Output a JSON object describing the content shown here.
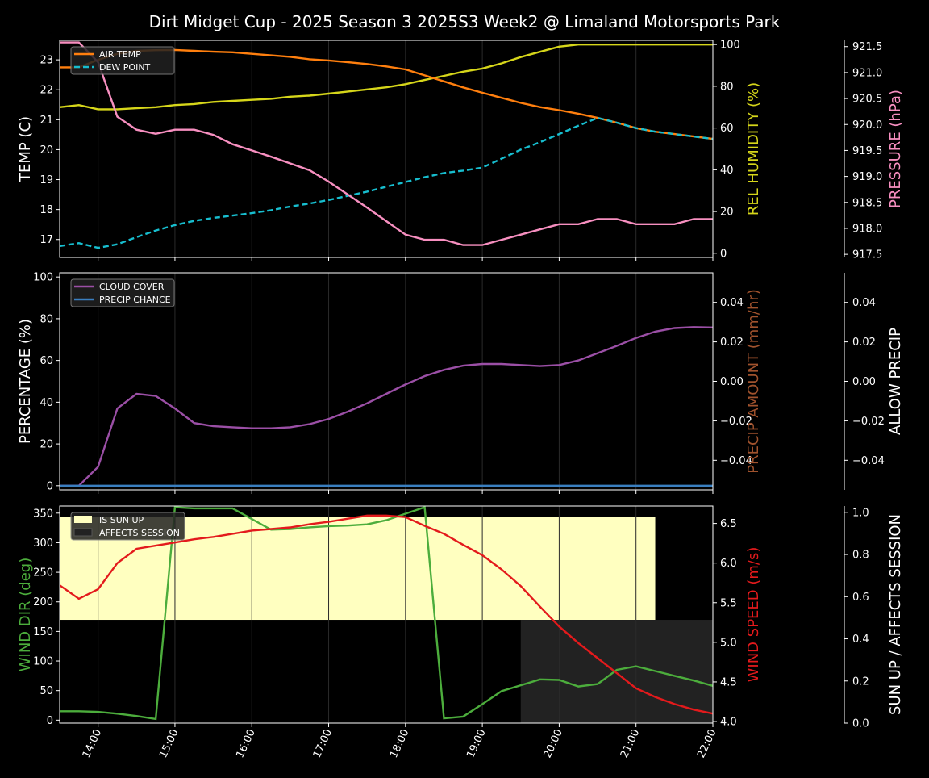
{
  "title": "Dirt Midget Cup - 2025 Season 3 2025S3 Week2 @ Limaland Motorsports Park",
  "colors": {
    "air_temp": "#ff7f0e",
    "dew_point": "#17becf",
    "humidity": "#d6d61a",
    "pressure": "#f78fc0",
    "cloud": "#9b4fa6",
    "precip_chance": "#3a7fc0",
    "precip_amount": "#a0522d",
    "wind_dir": "#4cad3c",
    "wind_speed": "#e31a1c",
    "sun_up": "#ffffc0",
    "affects": "#222222"
  },
  "x_ticks": [
    "14:00",
    "15:00",
    "16:00",
    "17:00",
    "18:00",
    "19:00",
    "20:00",
    "21:00",
    "22:00"
  ],
  "x_range_hours": [
    13.5,
    22.0
  ],
  "chart_data": [
    {
      "type": "line",
      "ylabel": "TEMP (C)",
      "ylabel2": "REL HUMIDITY (%)",
      "ylabel3": "PRESSURE (hPa)",
      "ylim": [
        16.4,
        23.65
      ],
      "ylim2": [
        -2,
        102
      ],
      "ylim3": [
        917.44,
        921.62
      ],
      "yticks": [
        "17",
        "18",
        "19",
        "20",
        "21",
        "22",
        "23"
      ],
      "yticks2": [
        "0",
        "20",
        "40",
        "60",
        "80",
        "100"
      ],
      "yticks3": [
        "917.5",
        "918.0",
        "918.5",
        "919.0",
        "919.5",
        "920.0",
        "920.5",
        "921.0",
        "921.5"
      ],
      "legend": [
        "AIR TEMP",
        "DEW POINT"
      ],
      "series": [
        {
          "name": "AIR TEMP",
          "axis": "left",
          "x": [
            13.5,
            13.75,
            14,
            14.25,
            14.5,
            14.75,
            15,
            15.25,
            15.5,
            15.75,
            16,
            16.25,
            16.5,
            16.75,
            17,
            17.25,
            17.5,
            17.75,
            18,
            18.25,
            18.5,
            18.75,
            19,
            19.25,
            19.5,
            19.75,
            20,
            20.25,
            20.5,
            20.75,
            21,
            21.25,
            21.5,
            21.75,
            22
          ],
          "values": [
            22.75,
            22.75,
            23.0,
            23.2,
            23.3,
            23.32,
            23.33,
            23.3,
            23.27,
            23.25,
            23.2,
            23.15,
            23.1,
            23.02,
            22.98,
            22.92,
            22.86,
            22.78,
            22.68,
            22.48,
            22.28,
            22.08,
            21.9,
            21.73,
            21.56,
            21.42,
            21.32,
            21.2,
            21.06,
            20.9,
            20.72,
            20.6,
            20.52,
            20.44,
            20.36
          ]
        },
        {
          "name": "DEW POINT",
          "axis": "left",
          "x": [
            13.5,
            13.75,
            14,
            14.25,
            14.5,
            14.75,
            15,
            15.25,
            15.5,
            15.75,
            16,
            16.25,
            16.5,
            16.75,
            17,
            17.25,
            17.5,
            17.75,
            18,
            18.25,
            18.5,
            18.75,
            19,
            19.25,
            19.5,
            19.75,
            20,
            20.25,
            20.5,
            20.75,
            21,
            21.25,
            21.5,
            21.75,
            22
          ],
          "values": [
            16.78,
            16.88,
            16.72,
            16.84,
            17.08,
            17.3,
            17.48,
            17.62,
            17.72,
            17.8,
            17.88,
            17.98,
            18.1,
            18.2,
            18.32,
            18.46,
            18.6,
            18.76,
            18.92,
            19.08,
            19.22,
            19.3,
            19.4,
            19.7,
            20.0,
            20.25,
            20.52,
            20.8,
            21.06,
            20.9,
            20.72,
            20.6,
            20.52,
            20.44,
            20.36
          ]
        },
        {
          "name": "REL HUMIDITY",
          "axis": "right",
          "x": [
            13.5,
            13.75,
            14,
            14.25,
            14.5,
            14.75,
            15,
            15.25,
            15.5,
            15.75,
            16,
            16.25,
            16.5,
            16.75,
            17,
            17.25,
            17.5,
            17.75,
            18,
            18.25,
            18.5,
            18.75,
            19,
            19.25,
            19.5,
            19.75,
            20,
            20.25,
            20.5,
            20.75,
            21,
            21.25,
            21.5,
            21.75,
            22
          ],
          "values": [
            70,
            71,
            69,
            69,
            69.5,
            70,
            71,
            71.5,
            72.5,
            73,
            73.5,
            74,
            75,
            75.5,
            76.5,
            77.5,
            78.5,
            79.5,
            81,
            83,
            85,
            87,
            88.5,
            91,
            94,
            96.5,
            99,
            100,
            100,
            100,
            100,
            100,
            100,
            100,
            100
          ]
        },
        {
          "name": "PRESSURE",
          "axis": "third",
          "x": [
            13.5,
            13.75,
            14,
            14.25,
            14.5,
            14.75,
            15,
            15.25,
            15.5,
            15.75,
            16,
            16.25,
            16.5,
            16.75,
            17,
            17.25,
            17.5,
            17.75,
            18,
            18.25,
            18.5,
            18.75,
            19,
            19.25,
            19.5,
            19.75,
            20,
            20.25,
            20.5,
            20.75,
            21,
            21.25,
            21.5,
            21.75,
            22
          ],
          "values": [
            921.58,
            921.58,
            921.2,
            920.15,
            919.9,
            919.82,
            919.9,
            919.9,
            919.8,
            919.62,
            919.5,
            919.38,
            919.25,
            919.12,
            918.9,
            918.65,
            918.4,
            918.14,
            917.88,
            917.78,
            917.78,
            917.68,
            917.68,
            917.78,
            917.88,
            917.98,
            918.08,
            918.08,
            918.18,
            918.18,
            918.08,
            918.08,
            918.08,
            918.18,
            918.18
          ]
        }
      ]
    },
    {
      "type": "line",
      "ylabel": "PERCENTAGE (%)",
      "ylabel2": "PRECIP AMOUNT (mm/hr)",
      "ylabel3": "ALLOW PRECIP",
      "ylim": [
        -2,
        102
      ],
      "ylim2": [
        -0.055,
        0.055
      ],
      "ylim3": [
        -0.055,
        0.055
      ],
      "yticks": [
        "0",
        "20",
        "40",
        "60",
        "80",
        "100"
      ],
      "yticks2": [
        "−0.04",
        "−0.02",
        "0.00",
        "0.02",
        "0.04"
      ],
      "yticks3": [
        "−0.04",
        "−0.02",
        "0.00",
        "0.02",
        "0.04"
      ],
      "legend": [
        "CLOUD COVER",
        "PRECIP CHANCE"
      ],
      "series": [
        {
          "name": "CLOUD COVER",
          "x": [
            13.5,
            13.75,
            14,
            14.25,
            14.5,
            14.75,
            15,
            15.25,
            15.5,
            15.75,
            16,
            16.25,
            16.5,
            16.75,
            17,
            17.25,
            17.5,
            17.75,
            18,
            18.25,
            18.5,
            18.75,
            19,
            19.25,
            19.5,
            19.75,
            20,
            20.25,
            20.5,
            20.75,
            21,
            21.25,
            21.5,
            21.75,
            22
          ],
          "values": [
            0,
            0,
            9,
            37,
            44,
            43,
            37,
            30,
            28.5,
            28,
            27.5,
            27.5,
            28,
            29.5,
            32,
            35.5,
            39.5,
            44,
            48.5,
            52.5,
            55.5,
            57.5,
            58.3,
            58.3,
            57.8,
            57.3,
            57.8,
            60,
            63.5,
            67,
            70.8,
            73.8,
            75.5,
            76,
            75.8
          ]
        },
        {
          "name": "PRECIP CHANCE",
          "x": [
            13.5,
            22
          ],
          "values": [
            0,
            0
          ]
        }
      ]
    },
    {
      "type": "line",
      "ylabel": "WIND DIR (deg)",
      "ylabel2": "WIND SPEED (m/s)",
      "ylabel3": "SUN UP / AFFECTS SESSION",
      "ylim": [
        -5,
        362
      ],
      "ylim2": [
        3.98,
        6.72
      ],
      "ylim3": [
        0,
        1.03
      ],
      "yticks": [
        "0",
        "50",
        "100",
        "150",
        "200",
        "250",
        "300",
        "350"
      ],
      "yticks2": [
        "4.0",
        "4.5",
        "5.0",
        "5.5",
        "6.0",
        "6.5"
      ],
      "yticks3": [
        "0.0",
        "0.2",
        "0.4",
        "0.6",
        "0.8",
        "1.0"
      ],
      "legend": [
        "IS SUN UP",
        "AFFECTS SESSION"
      ],
      "sun_up": {
        "x": [
          13.5,
          21.25
        ],
        "y": [
          0.49,
          0.98
        ]
      },
      "affects_session": {
        "x": [
          19.5,
          22.0
        ],
        "y": [
          0,
          0.49
        ]
      },
      "series": [
        {
          "name": "WIND DIR",
          "x": [
            13.5,
            13.75,
            14,
            14.25,
            14.5,
            14.75,
            15,
            15.25,
            15.5,
            15.75,
            16,
            16.25,
            16.5,
            16.75,
            17,
            17.25,
            17.5,
            17.75,
            18,
            18.25,
            18.5,
            18.75,
            19,
            19.25,
            19.5,
            19.75,
            20,
            20.25,
            20.5,
            20.75,
            21,
            21.25,
            21.5,
            21.75,
            22
          ],
          "values": [
            15,
            15,
            14,
            11,
            7,
            2,
            360,
            358,
            358,
            358,
            340,
            322,
            323,
            326,
            328,
            329,
            331,
            338,
            349,
            360,
            3,
            6,
            27,
            49,
            59,
            69,
            68,
            57,
            61,
            85,
            91,
            83,
            75,
            67,
            58
          ]
        },
        {
          "name": "WIND SPEED",
          "x": [
            13.5,
            13.75,
            14,
            14.25,
            14.5,
            14.75,
            15,
            15.25,
            15.5,
            15.75,
            16,
            16.25,
            16.5,
            16.75,
            17,
            17.25,
            17.5,
            17.75,
            18,
            18.25,
            18.5,
            18.75,
            19,
            19.25,
            19.5,
            19.75,
            20,
            20.25,
            20.5,
            20.75,
            21,
            21.25,
            21.5,
            21.75,
            22
          ],
          "values": [
            5.72,
            5.55,
            5.67,
            6.0,
            6.18,
            6.22,
            6.26,
            6.3,
            6.33,
            6.37,
            6.41,
            6.43,
            6.45,
            6.49,
            6.52,
            6.56,
            6.6,
            6.6,
            6.58,
            6.47,
            6.37,
            6.23,
            6.1,
            5.92,
            5.71,
            5.45,
            5.2,
            4.99,
            4.8,
            4.61,
            4.42,
            4.31,
            4.22,
            4.15,
            4.1
          ]
        }
      ]
    }
  ]
}
